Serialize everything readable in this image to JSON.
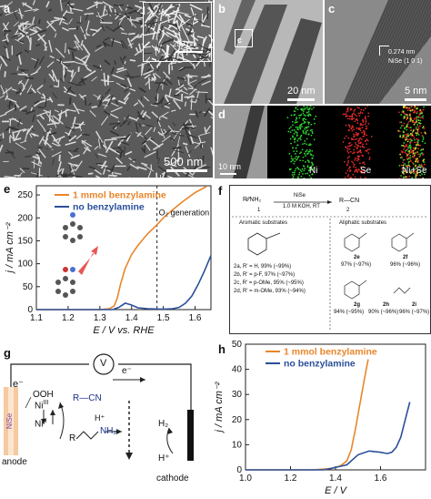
{
  "panels": {
    "a": {
      "label": "a",
      "scale_main": "500 nm",
      "scale_inset": "200 nm"
    },
    "b": {
      "label": "b",
      "box_label": "c",
      "scale": "20 nm"
    },
    "c": {
      "label": "c",
      "lattice": "0.274 nm",
      "plane": "NiSe (1 0 1)",
      "scale": "5 nm"
    },
    "d": {
      "label": "d",
      "scale": "10 nm",
      "maps": [
        "Ni",
        "Se",
        "Ni+Se"
      ]
    },
    "e": {
      "label": "e",
      "annotation": "O₂ generation"
    },
    "f": {
      "label": "f",
      "scheme_reagent": "NiSe",
      "scheme_conditions": "1.0 M KOH, RT",
      "reactant": "R⁄⁄NH₂",
      "product": "R—CN",
      "num1": "1",
      "num2": "2",
      "aromatic_header": "Aromatic substrates",
      "aliphatic_header": "Aliphatic substrates",
      "aromatic_rows": [
        "2a, R' = H, 99% (~99%)",
        "2b, R' = p-F, 97% (~97%)",
        "2c, R' = p-OMe, 95% (~95%)",
        "2d, R' = m-OMe, 93% (~94%)"
      ],
      "aliphatic_items": [
        {
          "id": "2e",
          "yield": "97% (~97%)"
        },
        {
          "id": "2f",
          "yield": "96% (~96%)"
        },
        {
          "id": "2g",
          "yield": "94% (~95%)"
        },
        {
          "id": "2h",
          "yield": "90% (~96%)"
        },
        {
          "id": "2i",
          "yield": "96% (~97%)"
        }
      ]
    },
    "g": {
      "label": "g",
      "voltmeter": "V",
      "electron": "e⁻",
      "electron_top": "e⁻",
      "ooh": "OOH",
      "ni3": "Ni",
      "ni3_sup": "III",
      "ni2": "Ni",
      "ni2_sup": "II",
      "nise": "NiSe",
      "anode": "anode",
      "cathode": "cathode",
      "rcn": "R—CN",
      "rnh2_r": "R",
      "rnh2_nh2": "NH₂",
      "hplus": "H⁺",
      "h2": "H₂",
      "hplus2": "H⁺"
    },
    "h": {
      "label": "h"
    }
  },
  "chart_data": [
    {
      "panel": "e",
      "type": "line",
      "xlabel": "E / V vs. RHE",
      "ylabel": "j / mA cm⁻²",
      "xlim": [
        1.1,
        1.65
      ],
      "ylim": [
        0,
        270
      ],
      "x_ticks": [
        1.1,
        1.2,
        1.3,
        1.4,
        1.5,
        1.6
      ],
      "x_tick_labels": [
        "1.1",
        "1.2",
        "1.3",
        "1.4",
        "1.5",
        "1.6"
      ],
      "y_ticks": [
        0,
        50,
        100,
        150,
        200,
        250
      ],
      "y_tick_labels": [
        "0",
        "50",
        "100",
        "150",
        "200",
        "250"
      ],
      "legend_position": "top-left",
      "vline_x": 1.48,
      "series": [
        {
          "name": "1 mmol benzylamine",
          "color": "#e8862a",
          "x": [
            1.1,
            1.3,
            1.33,
            1.345,
            1.355,
            1.365,
            1.38,
            1.4,
            1.42,
            1.45,
            1.48,
            1.5,
            1.53,
            1.56,
            1.6,
            1.635
          ],
          "y": [
            0,
            0,
            2,
            8,
            25,
            55,
            90,
            120,
            140,
            165,
            185,
            200,
            218,
            235,
            255,
            268
          ]
        },
        {
          "name": "no benzylamine",
          "color": "#2a4f9a",
          "x": [
            1.1,
            1.3,
            1.34,
            1.36,
            1.38,
            1.4,
            1.42,
            1.45,
            1.5,
            1.53,
            1.55,
            1.57,
            1.59,
            1.61,
            1.63,
            1.65
          ],
          "y": [
            0,
            0,
            0,
            5,
            14,
            10,
            4,
            2,
            1,
            2,
            5,
            14,
            30,
            55,
            85,
            118
          ]
        }
      ]
    },
    {
      "panel": "h",
      "type": "line",
      "xlabel": "E / V",
      "ylabel": "j / mA cm⁻²",
      "xlim": [
        1.0,
        1.8
      ],
      "ylim": [
        0,
        50
      ],
      "x_ticks": [
        1.0,
        1.2,
        1.4,
        1.6
      ],
      "x_tick_labels": [
        "1.0",
        "1.2",
        "1.4",
        "1.6"
      ],
      "y_ticks": [
        0,
        10,
        20,
        30,
        40,
        50
      ],
      "y_tick_labels": [
        "0",
        "10",
        "20",
        "30",
        "40",
        "50"
      ],
      "legend_position": "top-left",
      "series": [
        {
          "name": "1 mmol benzylamine",
          "color": "#e8862a",
          "x": [
            1.0,
            1.3,
            1.38,
            1.42,
            1.45,
            1.47,
            1.49,
            1.51,
            1.53,
            1.545
          ],
          "y": [
            0,
            0,
            0.5,
            1.5,
            3.5,
            8,
            17,
            27,
            37,
            44
          ]
        },
        {
          "name": "no benzylamine",
          "color": "#2a4f9a",
          "x": [
            1.0,
            1.35,
            1.45,
            1.5,
            1.55,
            1.6,
            1.63,
            1.65,
            1.67,
            1.69,
            1.71,
            1.73
          ],
          "y": [
            0,
            0,
            2,
            6,
            7.5,
            7,
            6.5,
            7,
            9,
            13,
            20,
            27
          ]
        }
      ]
    }
  ]
}
